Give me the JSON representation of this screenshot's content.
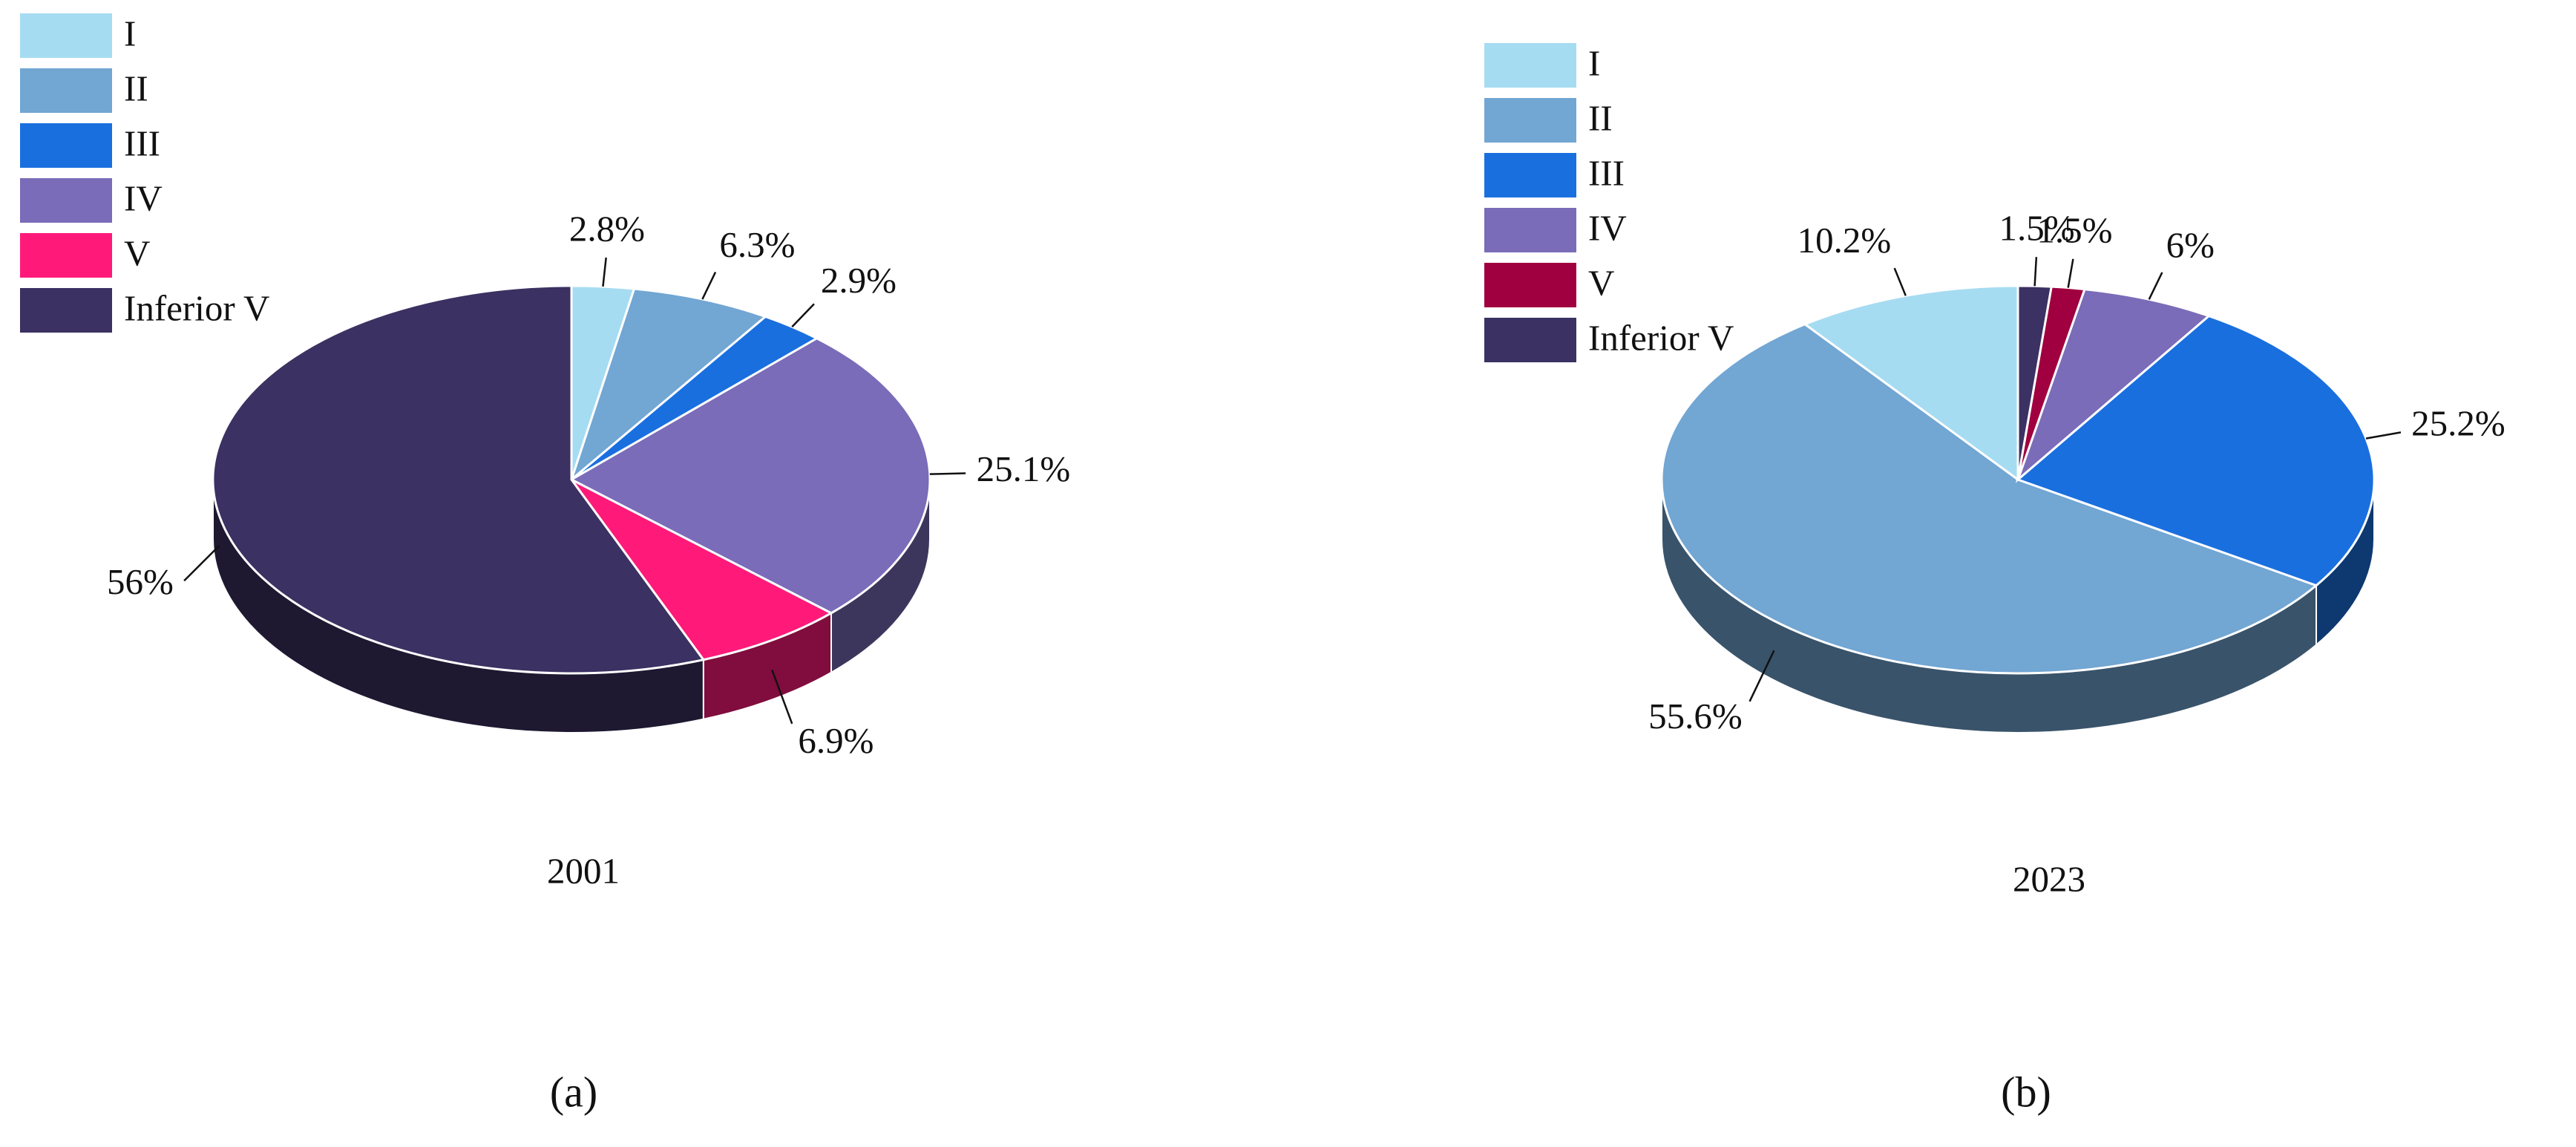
{
  "chart_data": [
    {
      "type": "pie",
      "title": "2001",
      "panel_label": "(a)",
      "direction": "clockwise",
      "categories": [
        "I",
        "II",
        "III",
        "IV",
        "V",
        "Inferior V"
      ],
      "values": [
        2.8,
        6.3,
        2.9,
        25.1,
        6.9,
        56
      ],
      "value_labels": [
        "2.8%",
        "6.3%",
        "2.9%",
        "25.1%",
        "6.9%",
        "56%"
      ],
      "colors": [
        "#a6dcf2",
        "#72a6d3",
        "#1a6fdf",
        "#7a6cb8",
        "#ff1a7a",
        "#3b3162"
      ]
    },
    {
      "type": "pie",
      "title": "2023",
      "panel_label": "(b)",
      "direction": "counterclockwise",
      "categories": [
        "I",
        "II",
        "III",
        "IV",
        "V",
        "Inferior V"
      ],
      "values": [
        10.2,
        55.6,
        25.2,
        6,
        1.5,
        1.5
      ],
      "value_labels": [
        "10.2%",
        "55.6%",
        "25.2%",
        "6%",
        "1.5%",
        "1.5%"
      ],
      "colors": [
        "#a6dcf2",
        "#72a6d3",
        "#1a6fdf",
        "#7a6cb8",
        "#a0003f",
        "#3b3162"
      ]
    }
  ]
}
